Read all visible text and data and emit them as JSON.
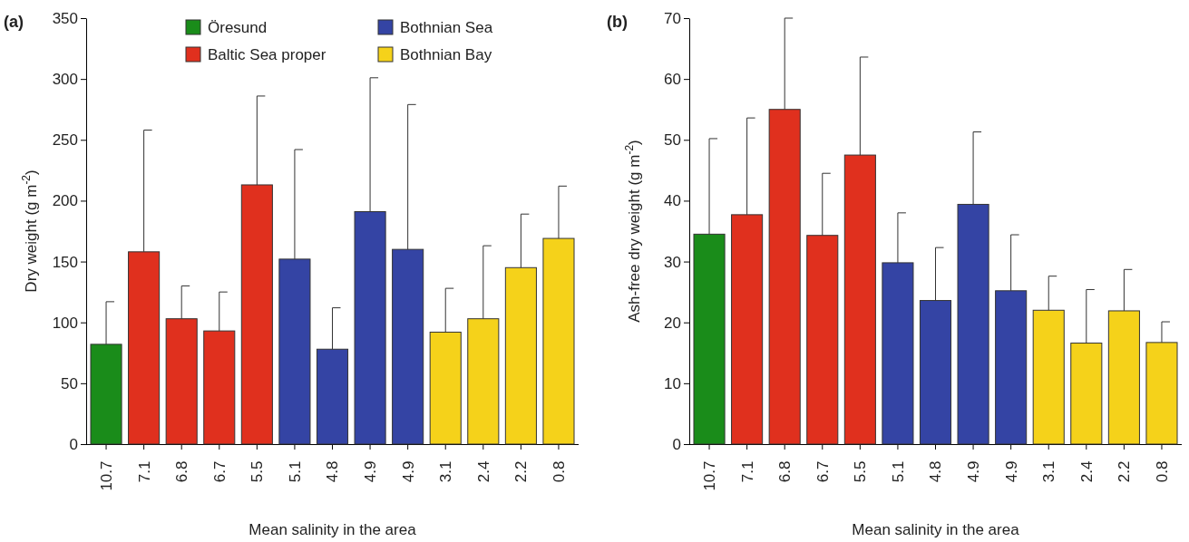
{
  "chart_data": [
    {
      "type": "bar",
      "title": "(a)",
      "xlabel": "Mean salinity in the area",
      "ylabel": "Dry weight  (g m$^{-2}$)",
      "stacked": true,
      "legend": "top",
      "categories": [
        "10.7",
        "7.1",
        "6.8",
        "6.7",
        "5.5",
        "5.1",
        "4.8",
        "4.9",
        "4.9",
        "3.1",
        "2.4",
        "2.2",
        "0.8"
      ],
      "ylim": [
        0,
        350
      ],
      "yticks": [
        0,
        50,
        100,
        150,
        200,
        250,
        300,
        350
      ],
      "series": [
        {
          "name": "Öresund",
          "color": "#1a8c1a",
          "values": [
            82,
            null,
            null,
            null,
            null,
            null,
            null,
            null,
            null,
            null,
            null,
            null,
            null
          ],
          "errors": [
            [
              82,
              117
            ],
            null,
            null,
            null,
            null,
            null,
            null,
            null,
            null,
            null,
            null,
            null,
            null
          ]
        },
        {
          "name": "Baltic Sea proper",
          "color": "#e0301e",
          "values": [
            null,
            158,
            103,
            93,
            213,
            null,
            null,
            null,
            null,
            null,
            null,
            null,
            null
          ],
          "errors": [
            null,
            [
              158,
              258
            ],
            [
              103,
              130
            ],
            [
              93,
              125
            ],
            [
              213,
              286
            ],
            null,
            null,
            null,
            null,
            null,
            null,
            null,
            null
          ]
        },
        {
          "name": "Bothnian Sea",
          "color": "#3444a4",
          "values": [
            null,
            null,
            null,
            null,
            null,
            152,
            78,
            191,
            160,
            null,
            null,
            null,
            null
          ],
          "errors": [
            null,
            null,
            null,
            null,
            null,
            [
              152,
              242
            ],
            [
              78,
              112
            ],
            [
              191,
              301
            ],
            [
              160,
              279
            ],
            null,
            null,
            null,
            null
          ]
        },
        {
          "name": "Bothnian Bay",
          "color": "#f5d21a",
          "values": [
            null,
            null,
            null,
            null,
            null,
            null,
            null,
            null,
            null,
            92,
            103,
            145,
            169
          ],
          "errors": [
            null,
            null,
            null,
            null,
            null,
            null,
            null,
            null,
            null,
            [
              92,
              128
            ],
            [
              103,
              163
            ],
            [
              145,
              189
            ],
            [
              169,
              212
            ]
          ]
        }
      ]
    },
    {
      "type": "bar",
      "title": "(b)",
      "xlabel": "Mean salinity in the area",
      "ylabel": "Ash-free dry weight  (g m$^{-2}$)",
      "stacked": true,
      "categories": [
        "10.7",
        "7.1",
        "6.8",
        "6.7",
        "5.5",
        "5.1",
        "4.8",
        "4.9",
        "4.9",
        "3.1",
        "2.4",
        "2.2",
        "0.8"
      ],
      "ylim": [
        0,
        70
      ],
      "yticks": [
        0,
        10,
        20,
        30,
        40,
        50,
        60,
        70
      ],
      "series": [
        {
          "color": "#1a8c1a",
          "values": [
            34.5,
            null,
            null,
            null,
            null,
            null,
            null,
            null,
            null,
            null,
            null,
            null,
            null
          ],
          "errors": [
            [
              34.5,
              50.2
            ],
            null,
            null,
            null,
            null,
            null,
            null,
            null,
            null,
            null,
            null,
            null,
            null
          ]
        },
        {
          "color": "#e0301e",
          "values": [
            null,
            37.7,
            55,
            34.3,
            47.5,
            null,
            null,
            null,
            null,
            null,
            null,
            null,
            null
          ],
          "errors": [
            null,
            [
              37.7,
              53.6
            ],
            [
              55,
              70
            ],
            [
              34.3,
              44.5
            ],
            [
              47.5,
              63.6
            ],
            null,
            null,
            null,
            null,
            null,
            null,
            null,
            null
          ]
        },
        {
          "color": "#3444a4",
          "values": [
            null,
            null,
            null,
            null,
            null,
            29.8,
            23.6,
            39.4,
            25.2,
            null,
            null,
            null,
            null
          ],
          "errors": [
            null,
            null,
            null,
            null,
            null,
            [
              29.8,
              38
            ],
            [
              23.6,
              32.3
            ],
            [
              39.4,
              51.3
            ],
            [
              25.2,
              34.4
            ],
            null,
            null,
            null,
            null
          ]
        },
        {
          "color": "#f5d21a",
          "values": [
            null,
            null,
            null,
            null,
            null,
            null,
            null,
            null,
            null,
            22,
            16.6,
            21.9,
            16.7
          ],
          "errors": [
            null,
            null,
            null,
            null,
            null,
            null,
            null,
            null,
            null,
            [
              22,
              27.6
            ],
            [
              16.6,
              25.4
            ],
            [
              21.9,
              28.7
            ],
            [
              16.7,
              20.1
            ]
          ]
        }
      ]
    }
  ]
}
